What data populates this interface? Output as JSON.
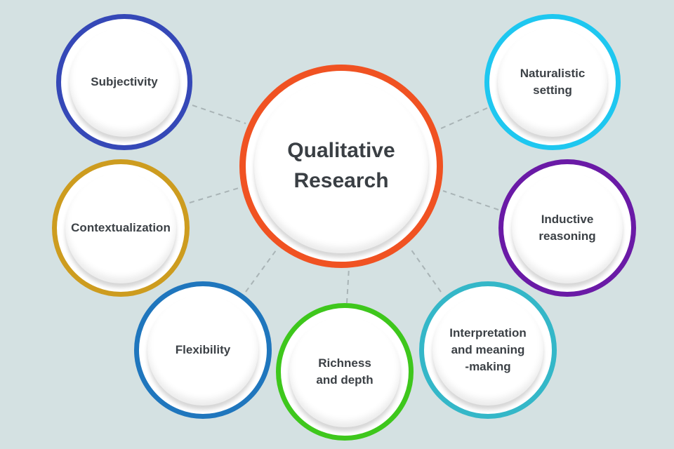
{
  "diagram": {
    "center": {
      "label": "Qualitative\nResearch",
      "color": "#f05222"
    },
    "nodes": [
      {
        "id": "subjectivity",
        "label": "Subjectivity",
        "color": "#3548b7"
      },
      {
        "id": "contextualization",
        "label": "Contextualization",
        "color": "#cd9c1f"
      },
      {
        "id": "flexibility",
        "label": "Flexibility",
        "color": "#1f76bd"
      },
      {
        "id": "richness",
        "label": "Richness\nand depth",
        "color": "#3ec71c"
      },
      {
        "id": "interpretation",
        "label": "Interpretation\nand meaning\n-making",
        "color": "#34b7c8"
      },
      {
        "id": "inductive",
        "label": "Inductive\nreasoning",
        "color": "#6a1aa6"
      },
      {
        "id": "naturalistic",
        "label": "Naturalistic\nsetting",
        "color": "#1ec7f0"
      }
    ],
    "background": "#d4e1e2",
    "connector_color": "#a9b4b6"
  }
}
